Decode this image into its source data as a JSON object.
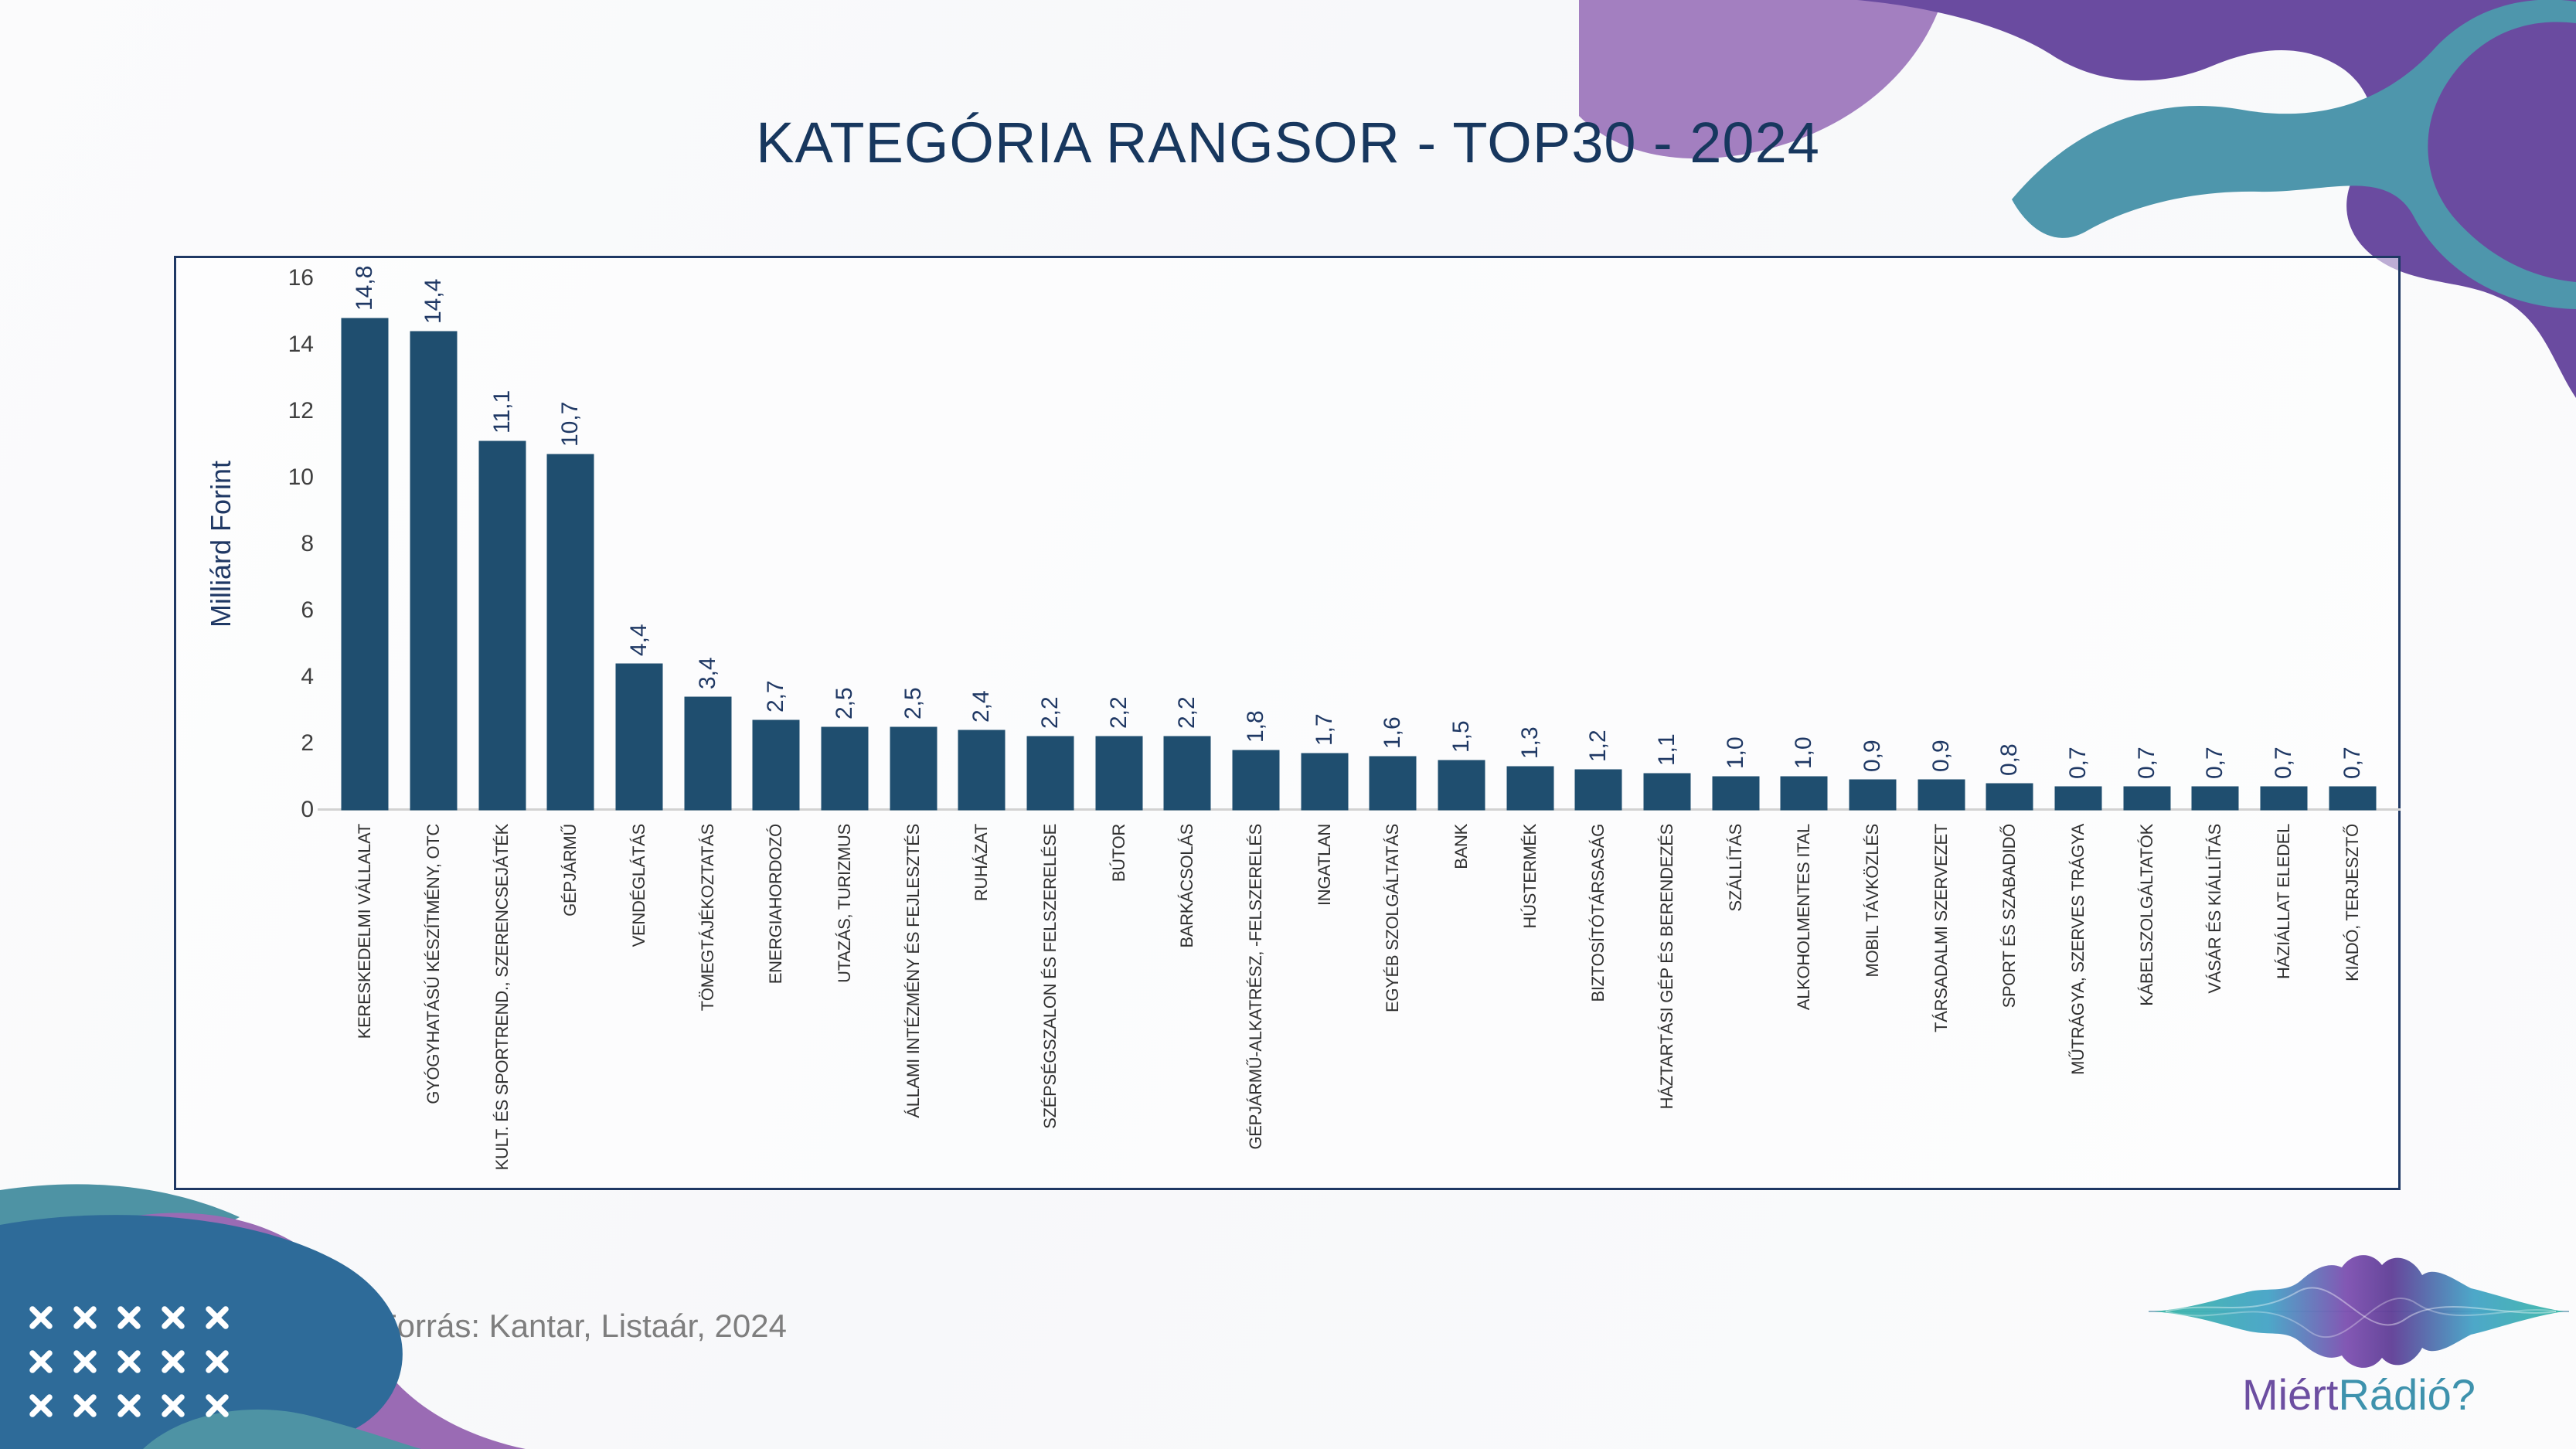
{
  "slide": {
    "title": "KATEGÓRIA RANGSOR - TOP30 - 2024",
    "source_note": "Forrás: Kantar, Listaár, 2024"
  },
  "logo": {
    "text_primary": "Miért",
    "text_secondary": "Rádió?"
  },
  "chart_data": {
    "type": "bar",
    "title": "KATEGÓRIA RANGSOR - TOP30 - 2024",
    "ylabel": "Milliárd Forint",
    "xlabel": "",
    "ylim": [
      0,
      16
    ],
    "yticks": [
      0,
      2,
      4,
      6,
      8,
      10,
      12,
      14,
      16
    ],
    "grid": false,
    "legend": false,
    "categories": [
      "KERESKEDELMI VÁLLALAT",
      "GYÓGYHATÁSÚ KÉSZÍTMÉNY, OTC",
      "KULT. ÉS SPORTREND., SZERENCSEJÁTÉK",
      "GÉPJÁRMŰ",
      "VENDÉGLÁTÁS",
      "TÖMEGTÁJÉKOZTATÁS",
      "ENERGIAHORDOZÓ",
      "UTAZÁS, TURIZMUS",
      "ÁLLAMI INTÉZMÉNY ÉS FEJLESZTÉS",
      "RUHÁZAT",
      "SZÉPSÉGSZALON ÉS FELSZERELÉSE",
      "BÚTOR",
      "BARKÁCSOLÁS",
      "GÉPJÁRMŰ-ALKATRÉSZ, -FELSZERELÉS",
      "INGATLAN",
      "EGYÉB SZOLGÁLTATÁS",
      "BANK",
      "HÚSTERMÉK",
      "BIZTOSÍTÓTÁRSASÁG",
      "HÁZTARTÁSI GÉP ÉS BERENDEZÉS",
      "SZÁLLÍTÁS",
      "ALKOHOLMENTES ITAL",
      "MOBIL TÁVKÖZLÉS",
      "TÁRSADALMI SZERVEZET",
      "SPORT ÉS SZABADIDŐ",
      "MŰTRÁGYA, SZERVES TRÁGYA",
      "KÁBELSZOLGÁLTATÓK",
      "VÁSÁR ÉS KIÁLLÍTÁS",
      "HÁZIÁLLAT ELEDEL",
      "KIADÓ, TERJESZTŐ"
    ],
    "values": [
      14.8,
      14.4,
      11.1,
      10.7,
      4.4,
      3.4,
      2.7,
      2.5,
      2.5,
      2.4,
      2.2,
      2.2,
      2.2,
      1.8,
      1.7,
      1.6,
      1.5,
      1.3,
      1.2,
      1.1,
      1.0,
      1.0,
      0.9,
      0.9,
      0.8,
      0.7,
      0.7,
      0.7,
      0.7,
      0.7
    ],
    "value_labels": [
      "14,8",
      "14,4",
      "11,1",
      "10,7",
      "4,4",
      "3,4",
      "2,7",
      "2,5",
      "2,5",
      "2,4",
      "2,2",
      "2,2",
      "2,2",
      "1,8",
      "1,7",
      "1,6",
      "1,5",
      "1,3",
      "1,2",
      "1,1",
      "1,0",
      "1,0",
      "0,9",
      "0,9",
      "0,8",
      "0,7",
      "0,7",
      "0,7",
      "0,7",
      "0,7"
    ],
    "bar_color": "#1F4E6F",
    "value_label_color": "#1F3864",
    "axis_label_color": "#3F3F3F"
  },
  "colors": {
    "title_navy": "#17375E",
    "frame_navy": "#1F3864",
    "axis_line_gray": "#D2D2D2",
    "footer_gray": "#7E7E7E",
    "decor_purple_dark": "#6A4BA0",
    "decor_purple_light": "#A37FC0",
    "decor_purple_blob": "#9A6BB4",
    "decor_teal": "#4E96AC",
    "decor_blue": "#2E6B99",
    "logo_purple": "#6C4EA1",
    "logo_teal": "#3E92AD"
  }
}
